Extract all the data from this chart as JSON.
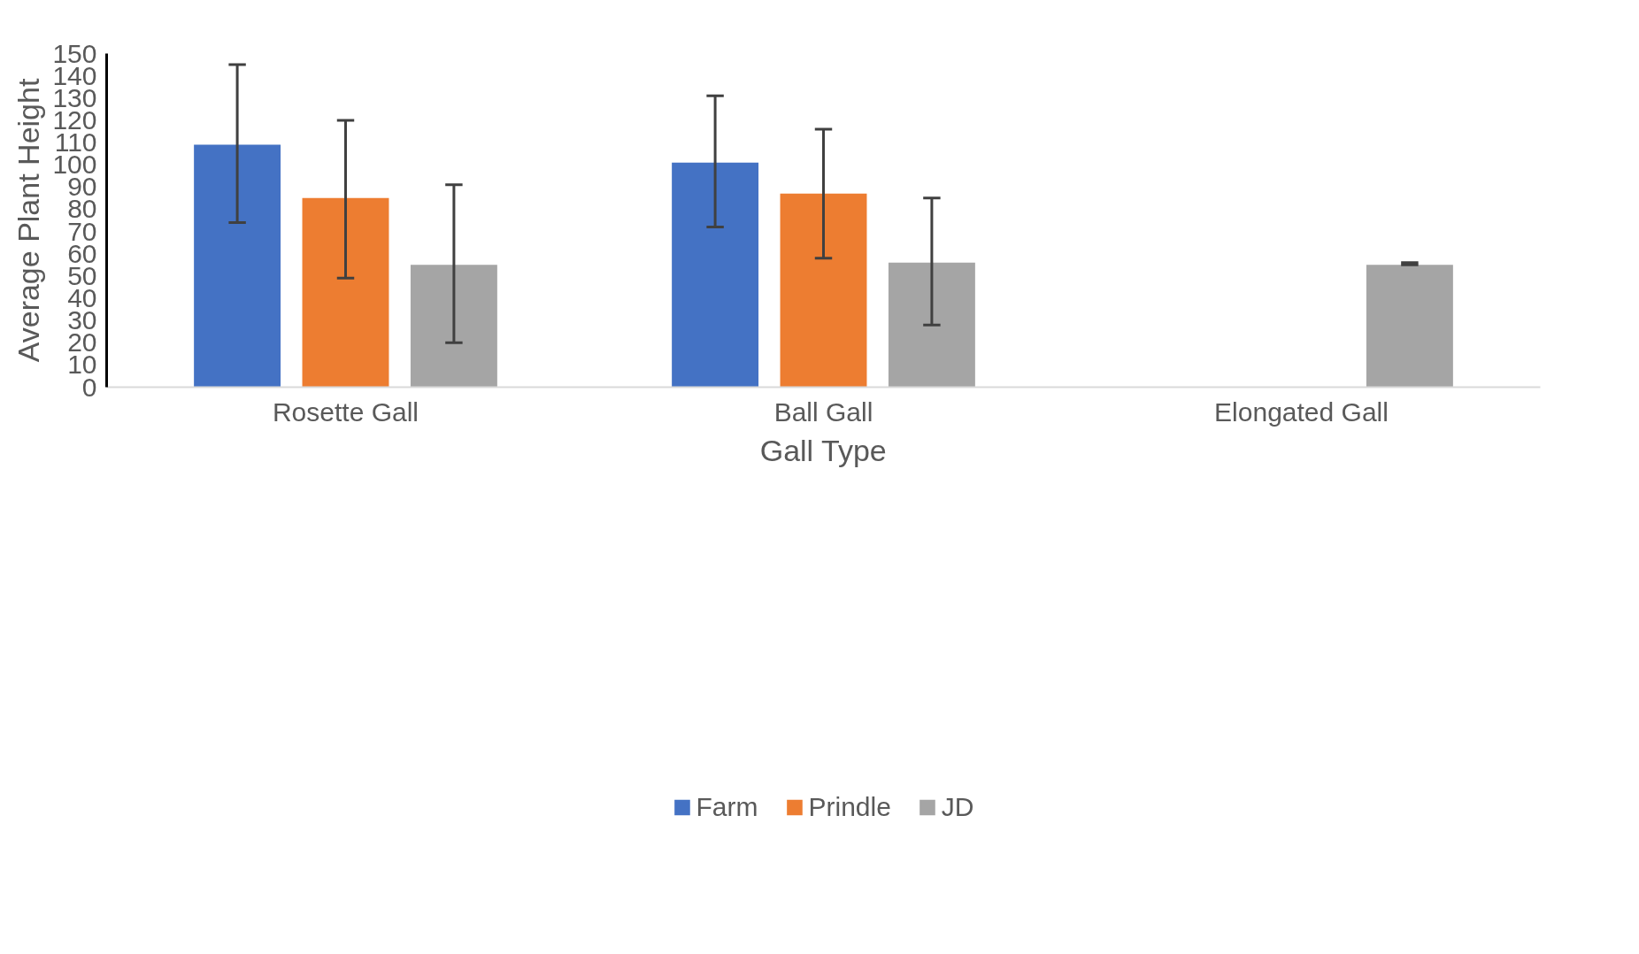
{
  "chart_data": {
    "type": "bar",
    "xlabel": "Gall Type",
    "ylabel": "Average Plant Height",
    "categories": [
      "Rosette Gall",
      "Ball Gall",
      "Elongated Gall"
    ],
    "series": [
      {
        "name": "Farm",
        "color": "#4472c4",
        "values": [
          109,
          101,
          null
        ],
        "errors": [
          [
            74,
            145
          ],
          [
            72,
            131
          ],
          null
        ]
      },
      {
        "name": "Prindle",
        "color": "#ed7d31",
        "values": [
          85,
          87,
          null
        ],
        "errors": [
          [
            49,
            120
          ],
          [
            58,
            116
          ],
          null
        ]
      },
      {
        "name": "JD",
        "color": "#a5a5a5",
        "values": [
          55,
          56,
          55
        ],
        "errors": [
          [
            20,
            91
          ],
          [
            28,
            85
          ],
          [
            55,
            56
          ]
        ]
      }
    ],
    "ylim": [
      0,
      150
    ],
    "yticks": [
      0,
      10,
      20,
      30,
      40,
      50,
      60,
      70,
      80,
      90,
      100,
      110,
      120,
      130,
      140,
      150
    ],
    "grid": false,
    "legend": "bottom"
  }
}
